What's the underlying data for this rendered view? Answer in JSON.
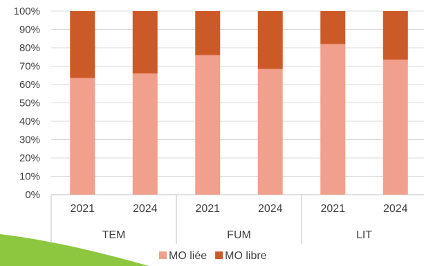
{
  "chart_data": {
    "type": "bar",
    "stacked": true,
    "percent": true,
    "ylim": [
      0,
      100
    ],
    "yticks": [
      "0%",
      "10%",
      "20%",
      "30%",
      "40%",
      "50%",
      "60%",
      "70%",
      "80%",
      "90%",
      "100%"
    ],
    "groups": [
      {
        "label": "TEM",
        "categories": [
          "2021",
          "2024"
        ]
      },
      {
        "label": "FUM",
        "categories": [
          "2021",
          "2024"
        ]
      },
      {
        "label": "LIT",
        "categories": [
          "2021",
          "2024"
        ]
      }
    ],
    "series": [
      {
        "name": "MO liée",
        "color": "#F0A08C",
        "values": [
          63.5,
          66,
          76,
          68.5,
          82,
          73.5
        ]
      },
      {
        "name": "MO libre",
        "color": "#CC5A28",
        "values": [
          36.5,
          34,
          24,
          31.5,
          18,
          26.5
        ]
      }
    ],
    "grid": true,
    "legend": "bottom-center"
  },
  "decor": {
    "swoosh_color": "#8DC63F"
  }
}
